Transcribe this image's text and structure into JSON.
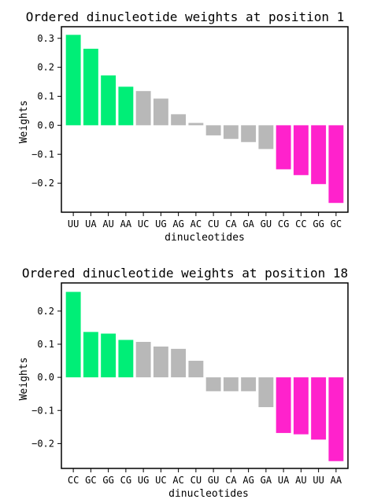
{
  "colors": {
    "positive": "#00ee77",
    "neutral": "#b8b8b8",
    "negative": "#ff22cc"
  },
  "chart_data": [
    {
      "type": "bar",
      "title": "Ordered dinucleotide weights at position 1",
      "xlabel": "dinucleotides",
      "ylabel": "Weights",
      "ylim": [
        -0.3,
        0.34
      ],
      "yticks": [
        0.3,
        0.2,
        0.1,
        0.0,
        -0.1,
        -0.2
      ],
      "ytick_labels": [
        "0.3",
        "0.2",
        "0.1",
        "0.0",
        "−0.1",
        "−0.2"
      ],
      "grid": false,
      "categories": [
        "UU",
        "UA",
        "AU",
        "AA",
        "UC",
        "UG",
        "AG",
        "AC",
        "CU",
        "CA",
        "GA",
        "GU",
        "CG",
        "CC",
        "GG",
        "GC"
      ],
      "values": [
        0.312,
        0.264,
        0.172,
        0.133,
        0.118,
        0.092,
        0.038,
        0.008,
        -0.035,
        -0.047,
        -0.058,
        -0.082,
        -0.152,
        -0.172,
        -0.203,
        -0.268
      ],
      "bar_colors": [
        "positive",
        "positive",
        "positive",
        "positive",
        "neutral",
        "neutral",
        "neutral",
        "neutral",
        "neutral",
        "neutral",
        "neutral",
        "neutral",
        "negative",
        "negative",
        "negative",
        "negative"
      ]
    },
    {
      "type": "bar",
      "title": "Ordered dinucleotide weights at position 18",
      "xlabel": "dinucleotides",
      "ylabel": "Weights",
      "ylim": [
        -0.275,
        0.285
      ],
      "yticks": [
        0.2,
        0.1,
        0.0,
        -0.1,
        -0.2
      ],
      "ytick_labels": [
        "0.2",
        "0.1",
        "0.0",
        "−0.1",
        "−0.2"
      ],
      "grid": false,
      "categories": [
        "CC",
        "GC",
        "GG",
        "CG",
        "UG",
        "UC",
        "AC",
        "CU",
        "GU",
        "CA",
        "AG",
        "GA",
        "UA",
        "AU",
        "UU",
        "AA"
      ],
      "values": [
        0.258,
        0.137,
        0.132,
        0.113,
        0.107,
        0.093,
        0.086,
        0.05,
        -0.042,
        -0.042,
        -0.042,
        -0.09,
        -0.168,
        -0.172,
        -0.188,
        -0.253
      ],
      "bar_colors": [
        "positive",
        "positive",
        "positive",
        "positive",
        "neutral",
        "neutral",
        "neutral",
        "neutral",
        "neutral",
        "neutral",
        "neutral",
        "neutral",
        "negative",
        "negative",
        "negative",
        "negative"
      ]
    }
  ]
}
